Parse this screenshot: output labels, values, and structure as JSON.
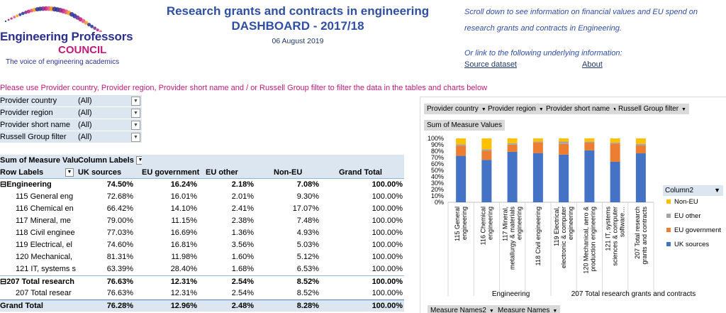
{
  "logo": {
    "line1": "Engineering Professors",
    "line2": "COUNCIL",
    "line3": "The voice of engineering academics"
  },
  "title": {
    "line1": "Research grants and contracts in engineering",
    "line2": "DASHBOARD - 2017/18"
  },
  "date": "06 August 2019",
  "info": {
    "line1": "Scroll down to see information on financial values and EU spend on",
    "line2": "research grants and contracts in Engineering.",
    "line3": "Or link to the following underlying information:",
    "link_source": "Source dataset",
    "link_about": "About"
  },
  "filter_note": "Please use Provider country, Provider region, Provider short name and / or Russell Group filter to filter the data in the tables and charts below",
  "filters": [
    {
      "label": "Provider country",
      "value": "(All)"
    },
    {
      "label": "Provider region",
      "value": "(All)"
    },
    {
      "label": "Provider short name",
      "value": "(All)"
    },
    {
      "label": "Russell Group filter",
      "value": "(All)"
    }
  ],
  "pivot": {
    "corner": "Sum of Measure Valu",
    "column_labels": "Column Labels",
    "row_labels": "Row Labels",
    "columns": [
      "UK sources",
      "EU government",
      "EU other",
      "Non-EU",
      "Grand Total"
    ],
    "rows": [
      {
        "label": "⊟Engineering",
        "values": [
          "74.50%",
          "16.24%",
          "2.18%",
          "7.08%",
          "100.00%"
        ],
        "style": "bold",
        "indent": 0
      },
      {
        "label": "115 General eng",
        "values": [
          "72.68%",
          "16.01%",
          "2.01%",
          "9.30%",
          "100.00%"
        ],
        "style": "",
        "indent": 1
      },
      {
        "label": "116 Chemical en",
        "values": [
          "66.42%",
          "14.10%",
          "2.41%",
          "17.07%",
          "100.00%"
        ],
        "style": "",
        "indent": 1
      },
      {
        "label": "117 Mineral, me",
        "values": [
          "79.00%",
          "11.15%",
          "2.38%",
          "7.48%",
          "100.00%"
        ],
        "style": "",
        "indent": 1
      },
      {
        "label": "118 Civil enginee",
        "values": [
          "77.03%",
          "16.69%",
          "1.36%",
          "4.93%",
          "100.00%"
        ],
        "style": "",
        "indent": 1
      },
      {
        "label": "119 Electrical, el",
        "values": [
          "74.60%",
          "16.81%",
          "3.56%",
          "5.03%",
          "100.00%"
        ],
        "style": "",
        "indent": 1
      },
      {
        "label": "120 Mechanical,",
        "values": [
          "81.31%",
          "11.98%",
          "1.60%",
          "5.12%",
          "100.00%"
        ],
        "style": "",
        "indent": 1
      },
      {
        "label": "121 IT, systems s",
        "values": [
          "63.39%",
          "28.40%",
          "1.68%",
          "6.53%",
          "100.00%"
        ],
        "style": "",
        "indent": 1
      },
      {
        "label": "⊟207 Total research",
        "values": [
          "76.63%",
          "12.31%",
          "2.54%",
          "8.52%",
          "100.00%"
        ],
        "style": "bold band",
        "indent": 0
      },
      {
        "label": "207 Total resear",
        "values": [
          "76.63%",
          "12.31%",
          "2.54%",
          "8.52%",
          "100.00%"
        ],
        "style": "",
        "indent": 1
      },
      {
        "label": "Grand Total",
        "values": [
          "76.28%",
          "12.96%",
          "2.48%",
          "8.28%",
          "100.00%"
        ],
        "style": "grand",
        "indent": 0
      }
    ]
  },
  "chart_filters": [
    "Provider country",
    "Provider region",
    "Provider short name",
    "Russell Group filter"
  ],
  "chart_value_chip": "Sum of Measure Values",
  "chart_bottom_chips": [
    "Measure Names2",
    "Measure Names"
  ],
  "legend_title": "Column2",
  "colors": {
    "uk": "#4472c4",
    "eu_gov": "#ed7d31",
    "eu_other": "#a5a5a5",
    "non_eu": "#ffc000"
  },
  "chart_data": {
    "type": "bar",
    "stacked": true,
    "categories": [
      "115 General engineering",
      "116 Chemical engineering",
      "117 Mineral, metallurgy & materials engineering",
      "118 Civil engineering",
      "119 Electrical, electronic & computer engineering",
      "120 Mechanical, aero & production engineering",
      "121 IT, systems sciences & computer software…",
      "207 Total research grants and contracts"
    ],
    "groups": [
      {
        "name": "Engineering",
        "count": 7
      },
      {
        "name": "207 Total research grants and contracts",
        "count": 1
      }
    ],
    "series": [
      {
        "name": "UK sources",
        "values": [
          72.68,
          66.42,
          79.0,
          77.03,
          74.6,
          81.31,
          63.39,
          76.63
        ]
      },
      {
        "name": "EU government",
        "values": [
          16.01,
          14.1,
          11.15,
          16.69,
          16.81,
          11.98,
          28.4,
          12.31
        ]
      },
      {
        "name": "EU other",
        "values": [
          2.01,
          2.41,
          2.38,
          1.36,
          3.56,
          1.6,
          1.68,
          2.54
        ]
      },
      {
        "name": "Non-EU",
        "values": [
          9.3,
          17.07,
          7.48,
          4.93,
          5.03,
          5.12,
          6.53,
          8.52
        ]
      }
    ],
    "legend_order": [
      "Non-EU",
      "EU other",
      "EU government",
      "UK sources"
    ],
    "yticks": [
      "100%",
      "90%",
      "80%",
      "70%",
      "60%",
      "50%",
      "40%",
      "30%",
      "20%",
      "10%",
      "0%"
    ],
    "ylim": [
      0,
      100
    ],
    "legend_position": "right"
  }
}
